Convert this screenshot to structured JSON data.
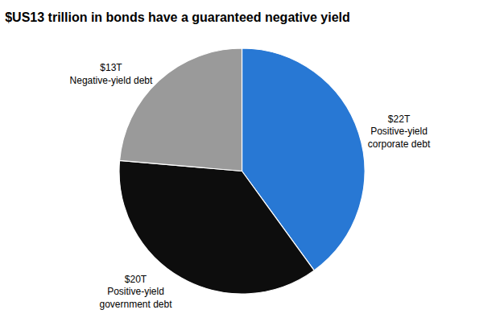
{
  "chart_data": {
    "type": "pie",
    "title": "$US13 trillion in bonds have a guaranteed negative yield",
    "categories": [
      "Positive-yield\ncorporate debt",
      "Positive-yield\ngovernment debt",
      "Negative-yield debt"
    ],
    "values": [
      22,
      20,
      13
    ],
    "value_labels": [
      "$22T",
      "$20T",
      "$13T"
    ],
    "data_labels": true,
    "colors": [
      "#2878d4",
      "#0d0d0d",
      "#9a9a9a"
    ],
    "legend": false
  }
}
